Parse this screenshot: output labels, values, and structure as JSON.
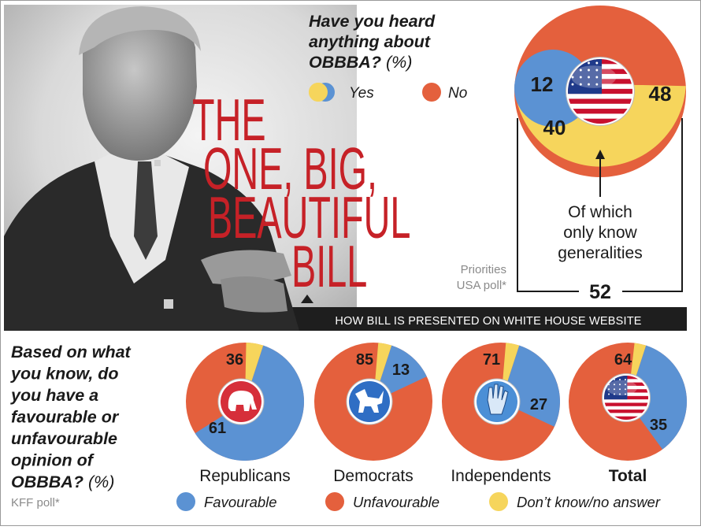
{
  "colors": {
    "blue": "#5b92d3",
    "orange": "#e4603d",
    "yellow": "#f6d55c",
    "grey_text": "#8a8a8a",
    "caption_bar": "#1e1e1e",
    "photo_tone": "#4a4a4a"
  },
  "photo": {
    "headline_lines": [
      "THE",
      "ONE, BIG,",
      "BEAUTIFUL",
      "BILL"
    ],
    "caption": "HOW BILL IS PRESENTED ON WHITE HOUSE WEBSITE"
  },
  "top_question": {
    "lines": [
      "Have you heard",
      "anything about"
    ],
    "last_line": "OBBBA?",
    "unit": "(%)",
    "legend": [
      "Yes",
      "No"
    ]
  },
  "bottom_question": {
    "lines": [
      "Based on what",
      "you know, do",
      "you have a",
      "favourable or",
      "unfavourable",
      "opinion of"
    ],
    "last_line": "OBBBA?",
    "unit": "(%)"
  },
  "sources": {
    "priorities": [
      "Priorities",
      "USA poll*"
    ],
    "kff": "KFF poll*"
  },
  "bracket": {
    "note_lines": [
      "Of which",
      "only know",
      "generalities"
    ],
    "total": "52"
  },
  "legend_bottom": [
    "Favourable",
    "Unfavourable",
    "Don’t know/no answer"
  ],
  "icons": [
    "us-flag-icon",
    "republican-elephant-icon",
    "democrat-donkey-icon",
    "independent-hand-icon"
  ],
  "chart_data": [
    {
      "type": "pie",
      "title": "Have you heard anything about OBBBA? (%)",
      "categories": [
        "No",
        "Yes — only know generalities",
        "Yes — other"
      ],
      "values": [
        48,
        40,
        12
      ],
      "bracket_total_yes": 52
    },
    {
      "type": "pie",
      "title": "Based on what you know, do you have a favourable or unfavourable opinion of OBBBA? (%)",
      "categories": [
        "Republicans",
        "Democrats",
        "Independents",
        "Total"
      ],
      "series": [
        {
          "name": "Favourable",
          "values": [
            61,
            13,
            27,
            35
          ]
        },
        {
          "name": "Unfavourable",
          "values": [
            36,
            85,
            71,
            64
          ]
        },
        {
          "name": "Don’t know/no answer",
          "values": [
            3,
            2,
            2,
            1
          ]
        }
      ]
    }
  ]
}
